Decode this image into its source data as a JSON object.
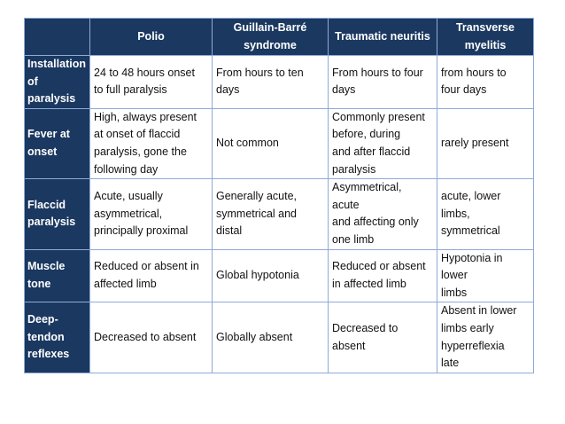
{
  "columns": [
    "",
    "Polio",
    "Guillain-Barré\nsyndrome",
    "Traumatic neuritis",
    "Transverse\nmyelitis"
  ],
  "rows": [
    {
      "label": "Installation\nof\nparalysis",
      "cells": [
        "24 to 48 hours onset\nto full paralysis",
        "From hours to ten\ndays",
        "From hours to four\ndays",
        "from hours to\nfour days"
      ]
    },
    {
      "label": "Fever at\nonset",
      "cells": [
        "High, always present\nat onset of flaccid\nparalysis, gone the\nfollowing day",
        "Not common",
        "Commonly present\nbefore, during\nand after flaccid\nparalysis",
        "rarely present"
      ]
    },
    {
      "label": "Flaccid\nparalysis",
      "cells": [
        "Acute, usually\nasymmetrical,\nprincipally proximal",
        "Generally acute,\nsymmetrical and\ndistal",
        "Asymmetrical,\nacute\nand affecting only\none limb",
        "acute, lower\nlimbs,\nsymmetrical"
      ]
    },
    {
      "label": "Muscle\ntone",
      "cells": [
        "Reduced or absent in\naffected limb",
        "Global hypotonia",
        "Reduced or absent\nin affected limb",
        "Hypotonia in\nlower\nlimbs"
      ]
    },
    {
      "label": "Deep-\ntendon\nreflexes",
      "cells": [
        "Decreased to absent",
        "Globally absent",
        "Decreased to\nabsent",
        "Absent in lower\nlimbs early\nhyperreflexia\nlate"
      ]
    }
  ],
  "colors": {
    "header_bg": "#1b3860",
    "border": "#8faad8"
  }
}
